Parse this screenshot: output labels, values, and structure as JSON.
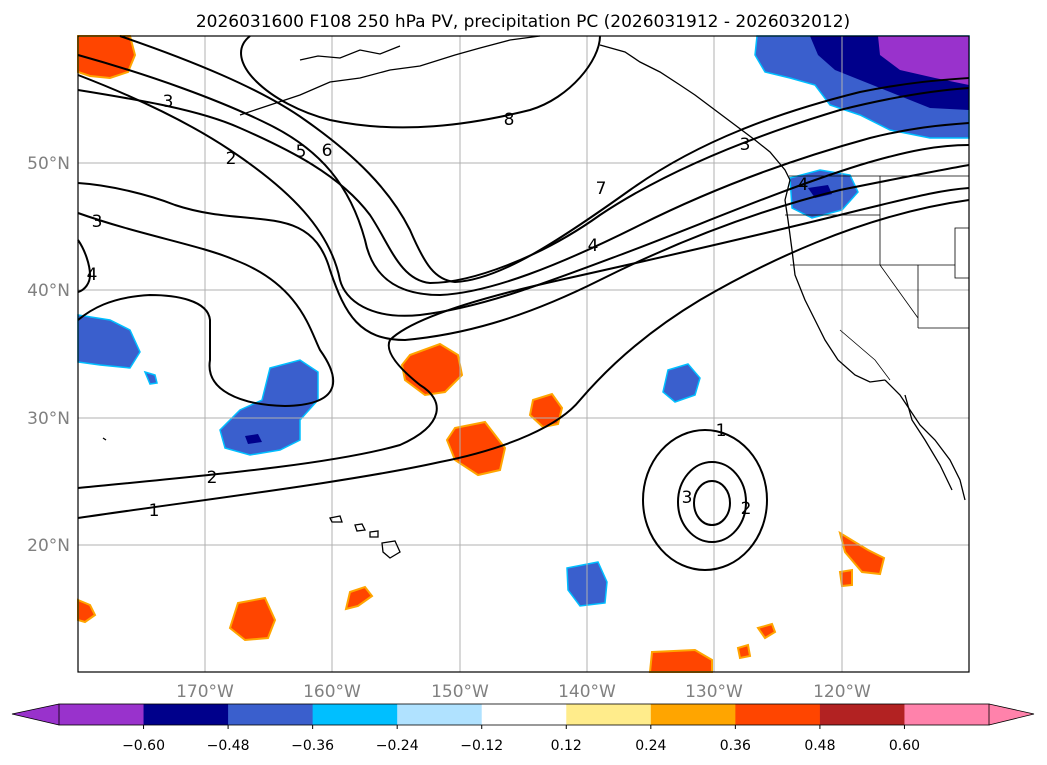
{
  "figure": {
    "title": "2026031600 F108 250 hPa PV, precipitation PC (2026031912 - 2026032012)"
  },
  "map": {
    "lon_range": [
      -180,
      -110
    ],
    "lat_range": [
      10,
      60
    ],
    "lat_ticks": [
      {
        "value": 50,
        "label": "50°N"
      },
      {
        "value": 40,
        "label": "40°N"
      },
      {
        "value": 30,
        "label": "30°N"
      },
      {
        "value": 20,
        "label": "20°N"
      }
    ],
    "lon_ticks": [
      {
        "value": -170,
        "label": "170°W"
      },
      {
        "value": -160,
        "label": "160°W"
      },
      {
        "value": -150,
        "label": "150°W"
      },
      {
        "value": -140,
        "label": "140°W"
      },
      {
        "value": -130,
        "label": "130°W"
      },
      {
        "value": -120,
        "label": "120°W"
      }
    ],
    "pv_contour_labels": [
      "1",
      "2",
      "3",
      "4",
      "5",
      "6",
      "7",
      "8",
      "1",
      "2",
      "3",
      "3",
      "4",
      "2",
      "3",
      "4"
    ]
  },
  "colorbar": {
    "ticks": [
      "−0.60",
      "−0.48",
      "−0.36",
      "−0.24",
      "−0.12",
      "0.12",
      "0.24",
      "0.36",
      "0.48",
      "0.60"
    ],
    "colors": [
      "#9932cc",
      "#00008b",
      "#3a5fcd",
      "#00bfff",
      "#b0e2ff",
      "#ffffff",
      "#ffec8b",
      "#ffa500",
      "#ff4500",
      "#b22222",
      "#ff82ab"
    ]
  }
}
